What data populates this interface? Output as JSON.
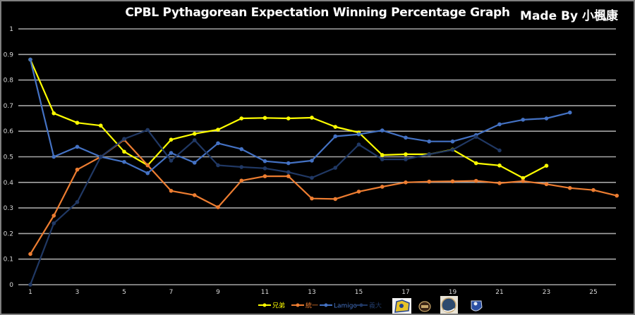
{
  "chart_data": {
    "type": "line",
    "title": "CPBL Pythagorean Expectation Winning Percentage Graph",
    "credit": "Made By 小楓康",
    "xlabel": "",
    "ylabel": "",
    "xlim": [
      1,
      26
    ],
    "ylim": [
      0,
      1
    ],
    "y_ticks": [
      "0",
      "0.1",
      "0.2",
      "0.3",
      "0.4",
      "0.5",
      "0.6",
      "0.7",
      "0.8",
      "0.9",
      "1"
    ],
    "y_tick_values": [
      0,
      0.1,
      0.2,
      0.3,
      0.4,
      0.5,
      0.6,
      0.7,
      0.8,
      0.9,
      1
    ],
    "x_ticks": [
      "1",
      "3",
      "5",
      "7",
      "9",
      "11",
      "13",
      "15",
      "17",
      "19",
      "21",
      "23",
      "25"
    ],
    "x_tick_values": [
      1,
      3,
      5,
      7,
      9,
      11,
      13,
      15,
      17,
      19,
      21,
      23,
      25
    ],
    "grid": true,
    "legend_position": "bottom",
    "series": [
      {
        "name": "兄弟",
        "color": "#ffff00",
        "values": [
          0.88,
          0.67,
          0.633,
          0.622,
          0.52,
          0.467,
          0.567,
          0.59,
          0.606,
          0.65,
          0.652,
          0.65,
          0.653,
          0.617,
          0.595,
          0.507,
          0.51,
          0.51,
          0.528,
          0.475,
          0.466,
          0.417,
          0.465
        ]
      },
      {
        "name": "統一",
        "color": "#ed7d31",
        "values": [
          0.12,
          0.27,
          0.45,
          0.5,
          0.567,
          0.467,
          0.367,
          0.35,
          0.303,
          0.407,
          0.424,
          0.424,
          0.337,
          0.335,
          0.364,
          0.383,
          0.4,
          0.403,
          0.404,
          0.406,
          0.397,
          0.405,
          0.393,
          0.378,
          0.37,
          0.348
        ]
      },
      {
        "name": "Lamigo",
        "color": "#4472c4",
        "values": [
          0.88,
          0.5,
          0.539,
          0.5,
          0.48,
          0.436,
          0.515,
          0.477,
          0.553,
          0.53,
          0.483,
          0.475,
          0.485,
          0.58,
          0.588,
          0.603,
          0.575,
          0.56,
          0.56,
          0.585,
          0.627,
          0.645,
          0.65,
          0.673
        ]
      },
      {
        "name": "義大",
        "color": "#203864",
        "values": [
          0.0,
          0.24,
          0.323,
          0.5,
          0.57,
          0.605,
          0.485,
          0.565,
          0.467,
          0.46,
          0.455,
          0.44,
          0.418,
          0.457,
          0.548,
          0.49,
          0.49,
          0.51,
          0.527,
          0.578,
          0.525
        ]
      }
    ],
    "team_logos": [
      "brothers-elephants-logo",
      "uni-lions-logo",
      "lamigo-monkeys-logo",
      "eda-rhinos-logo"
    ]
  }
}
